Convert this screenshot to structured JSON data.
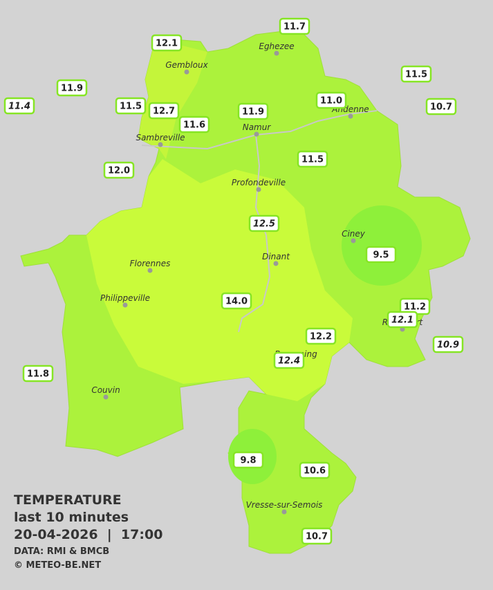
{
  "title": "TEMPERATURE",
  "subtitle": "last 10 minutes",
  "datetime": "20-04-2026  |  17:00",
  "source": "DATA: RMI & BMCB",
  "copyright": "© METEO-BE.NET",
  "cities": [
    "Gembloux",
    "Eghezee",
    "Andenne",
    "Namur",
    "Sambreville",
    "Profondeville",
    "Ciney",
    "Dinant",
    "Florennes",
    "Philippeville",
    "Rochefort",
    "Beauraing",
    "Couvin",
    "Vresse-sur-Semois"
  ],
  "stations": [
    "12.1",
    "11.7",
    "11.9",
    "11.4",
    "11.5",
    "12.7",
    "11.6",
    "11.9",
    "11.0",
    "11.5",
    "10.7",
    "12.0",
    "11.5",
    "12.5",
    "9.5",
    "14.0",
    "11.2",
    "12.1",
    "12.2",
    "10.9",
    "12.4",
    "11.8",
    "9.8",
    "10.6",
    "10.7"
  ]
}
